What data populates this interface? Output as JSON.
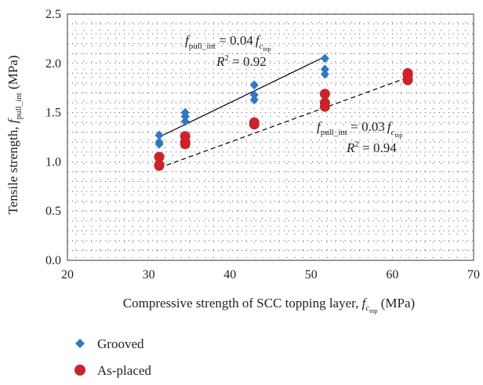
{
  "chart_data": {
    "type": "scatter",
    "xlabel": {
      "prefix": "Compressive strength of SCC topping layer, ",
      "var": "f",
      "sub": "c",
      "subsub": "top",
      "unit": " (MPa)"
    },
    "ylabel": {
      "prefix": "Tensile strength, ",
      "var": "f",
      "sub": "pull_int",
      "unit": " (MPa)"
    },
    "xlim": [
      20,
      70
    ],
    "ylim": [
      0.0,
      2.5
    ],
    "xticks": [
      "20",
      "30",
      "40",
      "50",
      "60",
      "70"
    ],
    "yticks": [
      "0.0",
      "0.5",
      "1.0",
      "1.5",
      "2.0",
      "2.5"
    ],
    "grid": "dotted",
    "legend_position": "bottom-left, below plot",
    "series": [
      {
        "name": "Grooved",
        "marker": "diamond",
        "color": "#2f78c4",
        "points": [
          [
            31.3,
            1.27
          ],
          [
            31.3,
            1.2
          ],
          [
            31.3,
            1.18
          ],
          [
            34.5,
            1.5
          ],
          [
            34.5,
            1.46
          ],
          [
            34.5,
            1.41
          ],
          [
            43.0,
            1.78
          ],
          [
            43.0,
            1.68
          ],
          [
            43.0,
            1.63
          ],
          [
            51.7,
            2.05
          ],
          [
            51.7,
            1.94
          ],
          [
            51.7,
            1.89
          ]
        ]
      },
      {
        "name": "As-placed",
        "marker": "circle",
        "color": "#cc2229",
        "points": [
          [
            31.3,
            1.05
          ],
          [
            31.3,
            0.97
          ],
          [
            31.3,
            0.96
          ],
          [
            34.5,
            1.26
          ],
          [
            34.5,
            1.2
          ],
          [
            34.5,
            1.18
          ],
          [
            43.0,
            1.4
          ],
          [
            43.0,
            1.38
          ],
          [
            51.7,
            1.69
          ],
          [
            51.7,
            1.6
          ],
          [
            51.7,
            1.56
          ],
          [
            61.9,
            1.9
          ],
          [
            61.9,
            1.88
          ],
          [
            61.9,
            1.83
          ]
        ]
      }
    ],
    "trendlines": [
      {
        "series": "Grooved",
        "style": "solid",
        "x": [
          31.3,
          51.7
        ],
        "slope": 0.04
      },
      {
        "series": "As-placed",
        "style": "dashed",
        "x": [
          31.3,
          61.9
        ],
        "slope": 0.03
      }
    ],
    "annotations": [
      {
        "lhs_var": "f",
        "lhs_sub": "pull_int",
        "eq": " = ",
        "coef": "0.04",
        "rhs_var": "f",
        "rhs_sub": "c",
        "rhs_subsub": "top",
        "r2_label": "R",
        "r2_sup": "2",
        "r2_value": " = 0.92"
      },
      {
        "lhs_var": "f",
        "lhs_sub": "pull_int",
        "eq": " = ",
        "coef": "0.03",
        "rhs_var": "f",
        "rhs_sub": "c",
        "rhs_subsub": "top",
        "r2_label": "R",
        "r2_sup": "2",
        "r2_value": " = 0.94"
      }
    ]
  }
}
